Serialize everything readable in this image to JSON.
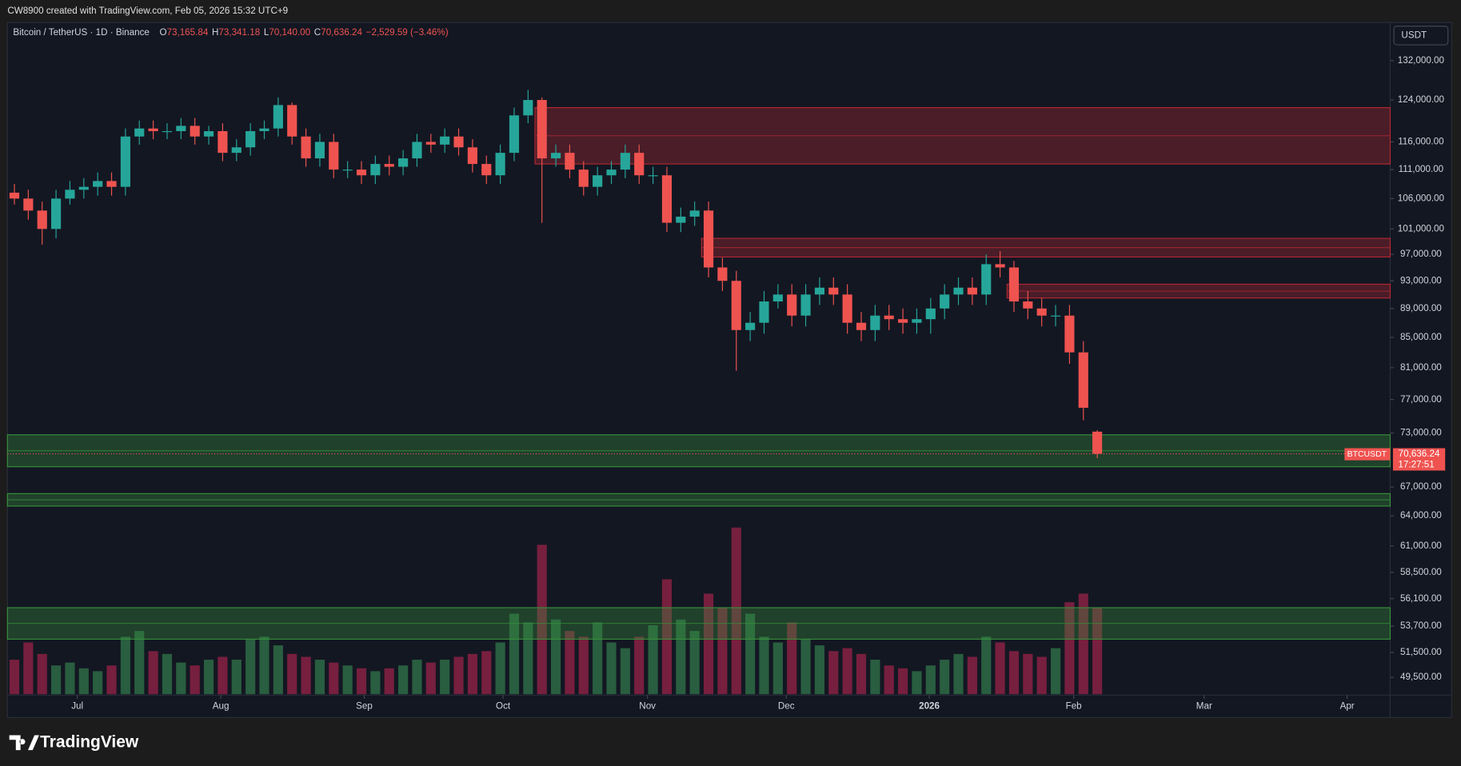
{
  "watermark_note": "CW8900 created with TradingView.com, Feb 05, 2026 15:32 UTC+9",
  "brand": "TradingView",
  "currency_button": "USDT",
  "chart_data": {
    "type": "candlestick",
    "title": "Bitcoin / TetherUS · 1D · Binance",
    "ohlc_readout": [
      {
        "label": "O",
        "value": "73,165.84"
      },
      {
        "label": "H",
        "value": "73,341.18"
      },
      {
        "label": "L",
        "value": "70,140.00"
      },
      {
        "label": "C",
        "value": "70,636.24"
      }
    ],
    "change": "−2,529.59 (−3.46%)",
    "symbol_tag": "BTCUSDT",
    "last_price_label": "70,636.24",
    "countdown": "17:27:51",
    "up_color": "#26a69a",
    "down_color": "#ef5350",
    "volume_up_color": "#2e6b45",
    "volume_down_color": "#8a2143",
    "open": [
      107000,
      106000,
      104000,
      101000,
      106000,
      107500,
      108000,
      109000,
      108000,
      117000,
      118500,
      118000,
      118000,
      119000,
      117000,
      118000,
      114000,
      115000,
      118000,
      118500,
      123000,
      117000,
      113000,
      116000,
      111000,
      111000,
      110000,
      112000,
      111500,
      113000,
      116000,
      115500,
      117000,
      115000,
      112000,
      110000,
      114000,
      121000,
      124000,
      113000,
      114000,
      111000,
      108000,
      110000,
      111000,
      114000,
      110000,
      110000,
      102000,
      103000,
      104000,
      95000,
      93000,
      86000,
      87000,
      90000,
      91000,
      88000,
      91000,
      92000,
      91000,
      87000,
      86000,
      88000,
      87500,
      87000,
      87500,
      89000,
      91000,
      92000,
      91000,
      95500,
      95000,
      90000,
      89000,
      88000,
      88000,
      83000,
      73165.84
    ],
    "high": [
      108500,
      107500,
      105500,
      107500,
      109000,
      109500,
      110500,
      110500,
      118500,
      120000,
      120000,
      119500,
      120500,
      120500,
      119000,
      119500,
      116500,
      119500,
      120000,
      124500,
      123500,
      118500,
      117500,
      117500,
      112500,
      112500,
      113500,
      113500,
      114500,
      117500,
      117500,
      118500,
      118500,
      116500,
      113500,
      115500,
      122500,
      126000,
      124500,
      115500,
      115500,
      112500,
      111500,
      112500,
      115500,
      115500,
      111500,
      111500,
      104500,
      105500,
      105500,
      96500,
      94500,
      88500,
      91500,
      92500,
      92500,
      92500,
      93500,
      93500,
      92500,
      88500,
      89500,
      89500,
      89000,
      89000,
      90500,
      92500,
      93500,
      93500,
      97000,
      97500,
      96000,
      91500,
      90500,
      89500,
      89500,
      84500,
      73341.18
    ],
    "low": [
      105000,
      102500,
      98500,
      99500,
      105000,
      106000,
      106500,
      106500,
      106500,
      115500,
      116500,
      116500,
      116500,
      115500,
      115500,
      112500,
      112500,
      113500,
      116500,
      117000,
      115500,
      111500,
      111500,
      109500,
      109500,
      108500,
      108500,
      110000,
      110000,
      111500,
      114000,
      114000,
      113500,
      110500,
      108500,
      108500,
      112500,
      119500,
      102000,
      111500,
      109500,
      106500,
      106500,
      108500,
      109500,
      108500,
      108500,
      100500,
      100500,
      101500,
      93500,
      91500,
      80600,
      84500,
      85500,
      89000,
      86500,
      86500,
      89500,
      89500,
      85500,
      84500,
      84500,
      86000,
      85500,
      85500,
      85500,
      87500,
      89500,
      89500,
      89500,
      93500,
      88500,
      87500,
      86500,
      86500,
      81500,
      74500,
      70140
    ],
    "close": [
      106000,
      104000,
      101000,
      106000,
      107500,
      108000,
      109000,
      108000,
      117000,
      118500,
      118000,
      118000,
      119000,
      117000,
      118000,
      114000,
      115000,
      118000,
      118500,
      123000,
      117000,
      113000,
      116000,
      111000,
      111000,
      110000,
      112000,
      111500,
      113000,
      116000,
      115500,
      117000,
      115000,
      112000,
      110000,
      114000,
      121000,
      124000,
      113000,
      114000,
      111000,
      108000,
      110000,
      111000,
      114000,
      110000,
      110000,
      102000,
      103000,
      104000,
      95000,
      93000,
      86000,
      87000,
      90000,
      91000,
      88000,
      91000,
      92000,
      91000,
      87000,
      86000,
      88000,
      87500,
      87000,
      87500,
      89000,
      91000,
      92000,
      91000,
      95500,
      95000,
      90000,
      89000,
      88000,
      88000,
      83000,
      76000,
      70636.24
    ],
    "volume": [
      12000,
      18000,
      14000,
      10000,
      11000,
      9000,
      8000,
      10000,
      20000,
      22000,
      15000,
      14000,
      11000,
      10000,
      12000,
      13000,
      12000,
      19000,
      20000,
      17000,
      14000,
      13000,
      12000,
      11000,
      10000,
      9000,
      8000,
      9000,
      10000,
      12000,
      11000,
      12000,
      13000,
      14000,
      15000,
      18000,
      28000,
      25000,
      52000,
      26000,
      22000,
      20000,
      25000,
      18000,
      16000,
      20000,
      24000,
      40000,
      26000,
      22000,
      35000,
      30000,
      58000,
      28000,
      20000,
      18000,
      25000,
      19000,
      17000,
      15000,
      16000,
      14000,
      12000,
      10000,
      9000,
      8000,
      10000,
      12000,
      14000,
      13000,
      20000,
      18000,
      15000,
      14000,
      13000,
      16000,
      32000,
      35000,
      30000
    ],
    "volume_ylim": [
      0,
      60000
    ],
    "xlim": [
      -0.5,
      99.1
    ],
    "xticks": [
      {
        "value": 4.53,
        "label": "Jul"
      },
      {
        "value": 14.87,
        "label": "Aug"
      },
      {
        "value": 25.2,
        "label": "Sep"
      },
      {
        "value": 35.2,
        "label": "Oct"
      },
      {
        "value": 45.6,
        "label": "Nov"
      },
      {
        "value": 55.6,
        "label": "Dec"
      },
      {
        "value": 65.9,
        "label": "2026"
      },
      {
        "value": 76.3,
        "label": "Feb"
      },
      {
        "value": 85.7,
        "label": "Mar"
      },
      {
        "value": 96.0,
        "label": "Apr"
      }
    ],
    "ylim": [
      46440,
      140270
    ],
    "log_scale": true,
    "yticks": [
      {
        "value": 132000,
        "label": "132,000.00"
      },
      {
        "value": 124000,
        "label": "124,000.00"
      },
      {
        "value": 116000,
        "label": "116,000.00"
      },
      {
        "value": 111000,
        "label": "111,000.00"
      },
      {
        "value": 106000,
        "label": "106,000.00"
      },
      {
        "value": 101000,
        "label": "101,000.00"
      },
      {
        "value": 97000,
        "label": "97,000.00"
      },
      {
        "value": 93000,
        "label": "93,000.00"
      },
      {
        "value": 89000,
        "label": "89,000.00"
      },
      {
        "value": 85000,
        "label": "85,000.00"
      },
      {
        "value": 81000,
        "label": "81,000.00"
      },
      {
        "value": 77000,
        "label": "77,000.00"
      },
      {
        "value": 73000,
        "label": "73,000.00"
      },
      {
        "value": 67000,
        "label": "67,000.00"
      },
      {
        "value": 64000,
        "label": "64,000.00"
      },
      {
        "value": 61000,
        "label": "61,000.00"
      },
      {
        "value": 58500,
        "label": "58,500.00"
      },
      {
        "value": 56100,
        "label": "56,100.00"
      },
      {
        "value": 53700,
        "label": "53,700.00"
      },
      {
        "value": 51500,
        "label": "51,500.00"
      },
      {
        "value": 49500,
        "label": "49,500.00"
      }
    ],
    "zones": [
      {
        "from": 112000,
        "to": 122500,
        "start": 38,
        "color": "#b22833"
      },
      {
        "from": 96600,
        "to": 99500,
        "start": 50,
        "color": "#b22833"
      },
      {
        "from": 90500,
        "to": 92500,
        "start": 72,
        "color": "#b22833"
      },
      {
        "from": 69200,
        "to": 72800,
        "start": 0,
        "color": "#388e3c"
      },
      {
        "from": 65000,
        "to": 66300,
        "start": 0,
        "color": "#388e3c"
      },
      {
        "from": 52600,
        "to": 55300,
        "start": 0,
        "color": "#388e3c"
      }
    ]
  }
}
